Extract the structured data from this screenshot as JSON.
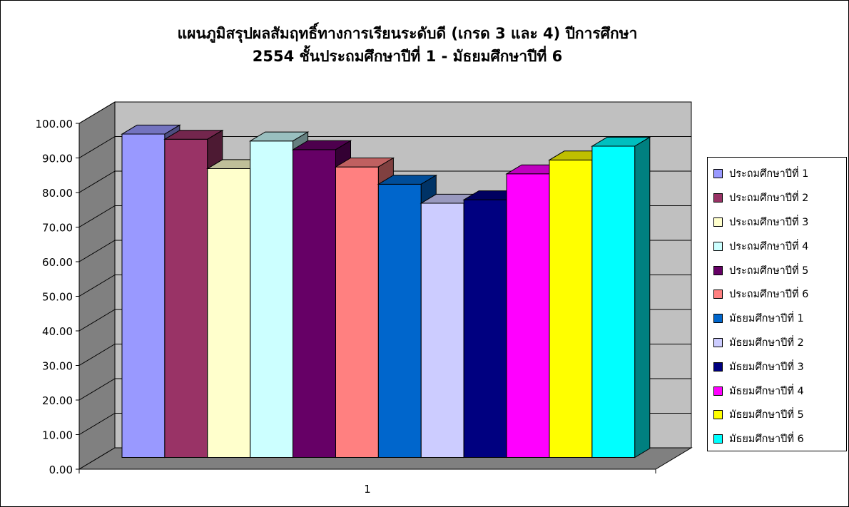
{
  "chart_data": {
    "type": "bar",
    "title_lines": [
      "แผนภูมิสรุปผลสัมฤทธิ์ทางการเรียนระดับดี (เกรด 3 และ 4) ปีการศึกษา",
      "2554 ชั้นประถมศึกษาปีที่ 1 - มัธยมศึกษาปีที่ 6"
    ],
    "categories": [
      "1"
    ],
    "ylim": [
      0,
      100
    ],
    "ytick_labels": [
      "0.00",
      "10.00",
      "20.00",
      "30.00",
      "40.00",
      "50.00",
      "60.00",
      "70.00",
      "80.00",
      "90.00",
      "100.00"
    ],
    "grid": true,
    "legend_position": "right",
    "series": [
      {
        "name": "ประถมศึกษาปีที่ 1",
        "values": [
          93.5
        ],
        "color": "#9999FF"
      },
      {
        "name": "ประถมศึกษาปีที่ 2",
        "values": [
          92.0
        ],
        "color": "#993366"
      },
      {
        "name": "ประถมศึกษาปีที่ 3",
        "values": [
          83.5
        ],
        "color": "#FFFFCC"
      },
      {
        "name": "ประถมศึกษาปีที่ 4",
        "values": [
          91.5
        ],
        "color": "#CCFFFF"
      },
      {
        "name": "ประถมศึกษาปีที่ 5",
        "values": [
          89.0
        ],
        "color": "#660066"
      },
      {
        "name": "ประถมศึกษาปีที่ 6",
        "values": [
          84.0
        ],
        "color": "#FF8080"
      },
      {
        "name": "มัธยมศึกษาปีที่ 1",
        "values": [
          79.0
        ],
        "color": "#0066CC"
      },
      {
        "name": "มัธยมศึกษาปีที่ 2",
        "values": [
          73.5
        ],
        "color": "#CCCCFF"
      },
      {
        "name": "มัธยมศึกษาปีที่ 3",
        "values": [
          74.5
        ],
        "color": "#000080"
      },
      {
        "name": "มัธยมศึกษาปีที่ 4",
        "values": [
          82.0
        ],
        "color": "#FF00FF"
      },
      {
        "name": "มัธยมศึกษาปีที่ 5",
        "values": [
          86.0
        ],
        "color": "#FFFF00"
      },
      {
        "name": "มัธยมศึกษาปีที่ 6",
        "values": [
          90.0
        ],
        "color": "#00FFFF"
      }
    ],
    "colors": {
      "back_wall": "#C0C0C0",
      "side_wall": "#808080",
      "floor": "#808080"
    }
  }
}
